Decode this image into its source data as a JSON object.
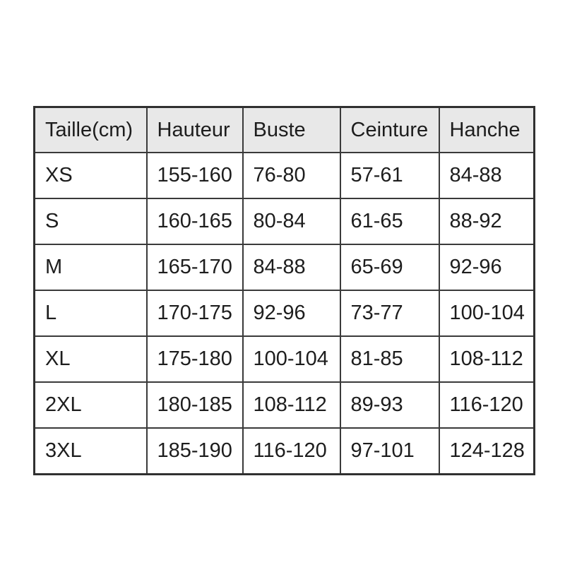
{
  "page": {
    "background_color": "#ffffff",
    "text_color": "#1d1d1d",
    "border_color": "#3a3a3a",
    "outer_border_color": "#303030",
    "header_bg_color": "#e8e8e8"
  },
  "table": {
    "columns": [
      "Taille(cm)",
      "Hauteur",
      "Buste",
      "Ceinture",
      "Hanche"
    ],
    "rows": [
      [
        "XS",
        "155-160",
        "76-80",
        "57-61",
        "84-88"
      ],
      [
        "S",
        "160-165",
        "80-84",
        "61-65",
        "88-92"
      ],
      [
        "M",
        "165-170",
        "84-88",
        "65-69",
        "92-96"
      ],
      [
        "L",
        "170-175",
        "92-96",
        "73-77",
        "100-104"
      ],
      [
        "XL",
        "175-180",
        "100-104",
        "81-85",
        "108-112"
      ],
      [
        "2XL",
        "180-185",
        "108-112",
        "89-93",
        "116-120"
      ],
      [
        "3XL",
        "185-190",
        "116-120",
        "97-101",
        "124-128"
      ]
    ]
  }
}
